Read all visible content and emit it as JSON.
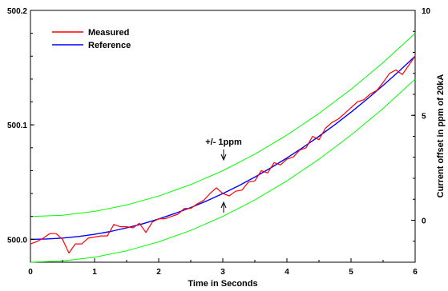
{
  "chart_data": {
    "type": "line",
    "xlabel": "Time in Seconds",
    "ylabel_left": "",
    "ylabel_right": "Current offset in ppm of 20kA",
    "xlim": [
      0,
      6
    ],
    "ylim_left": [
      499.98,
      500.2
    ],
    "ylim_right": [
      -2,
      10
    ],
    "x_ticks": [
      0,
      1,
      2,
      3,
      4,
      5,
      6
    ],
    "x_tick_labels": [
      "0",
      "1",
      "2",
      "3",
      "4",
      "5",
      "6"
    ],
    "y_left_ticks": [
      500.0,
      500.1,
      500.2
    ],
    "y_left_tick_labels": [
      "500.0",
      "500.1",
      "500.2"
    ],
    "y_right_ticks": [
      0,
      5,
      10
    ],
    "y_right_tick_labels": [
      "0",
      "5",
      "10"
    ],
    "grid": false,
    "legend_position": "top-left",
    "annotation": "+/- 1ppm",
    "series": [
      {
        "name": "Measured",
        "color": "#ff0000",
        "x": [
          0,
          0.1,
          0.2,
          0.3,
          0.4,
          0.5,
          0.6,
          0.7,
          0.8,
          0.9,
          1.0,
          1.1,
          1.2,
          1.3,
          1.4,
          1.5,
          1.6,
          1.7,
          1.8,
          1.9,
          2.0,
          2.1,
          2.2,
          2.3,
          2.4,
          2.5,
          2.6,
          2.7,
          2.8,
          2.9,
          3.0,
          3.1,
          3.2,
          3.3,
          3.4,
          3.5,
          3.6,
          3.7,
          3.8,
          3.9,
          4.0,
          4.1,
          4.2,
          4.3,
          4.4,
          4.5,
          4.6,
          4.7,
          4.8,
          4.9,
          5.0,
          5.1,
          5.2,
          5.3,
          5.4,
          5.5,
          5.6,
          5.7,
          5.8,
          5.9,
          6.0
        ],
        "values": [
          499.996,
          499.998,
          500.001,
          500.005,
          500.005,
          500.0,
          499.988,
          499.996,
          499.996,
          500.001,
          500.002,
          500.003,
          500.003,
          500.013,
          500.011,
          500.011,
          500.01,
          500.014,
          500.006,
          500.015,
          500.018,
          500.018,
          500.02,
          500.022,
          500.027,
          500.027,
          500.031,
          500.034,
          500.04,
          500.045,
          500.04,
          500.038,
          500.042,
          500.043,
          500.05,
          500.051,
          500.06,
          500.058,
          500.067,
          500.065,
          500.07,
          500.072,
          500.078,
          500.08,
          500.09,
          500.087,
          500.097,
          500.102,
          500.105,
          500.11,
          500.115,
          500.12,
          500.122,
          500.127,
          500.13,
          500.137,
          500.145,
          500.148,
          500.144,
          500.152,
          500.16
        ]
      },
      {
        "name": "Reference",
        "color": "#0000ff",
        "x": [
          0,
          0.25,
          0.5,
          0.75,
          1.0,
          1.25,
          1.5,
          1.75,
          2.0,
          2.25,
          2.5,
          2.75,
          3.0,
          3.25,
          3.5,
          3.75,
          4.0,
          4.25,
          4.5,
          4.75,
          5.0,
          5.25,
          5.5,
          5.75,
          6.0
        ],
        "values": [
          500.0,
          500.0003,
          500.0011,
          500.0025,
          500.0044,
          500.0069,
          500.01,
          500.0136,
          500.0178,
          500.0225,
          500.0278,
          500.0336,
          500.04,
          500.0469,
          500.0544,
          500.0625,
          500.0711,
          500.0803,
          500.09,
          500.1003,
          500.1111,
          500.1225,
          500.1344,
          500.1469,
          500.16
        ]
      },
      {
        "color": "#00ff00",
        "x": [
          0,
          0.5,
          1.0,
          1.5,
          2.0,
          2.5,
          3.0,
          3.5,
          4.0,
          4.5,
          5.0,
          5.5,
          6.0
        ],
        "values": [
          500.02,
          500.0211,
          500.0244,
          500.03,
          500.0378,
          500.0478,
          500.06,
          500.0744,
          500.0911,
          500.11,
          500.1311,
          500.1544,
          500.18
        ]
      },
      {
        "color": "#00ff00",
        "x": [
          0,
          0.5,
          1.0,
          1.5,
          2.0,
          2.5,
          3.0,
          3.5,
          4.0,
          4.5,
          5.0,
          5.5,
          6.0
        ],
        "values": [
          499.98,
          499.9811,
          499.9844,
          499.99,
          499.9978,
          500.0078,
          500.02,
          500.0344,
          500.0511,
          500.07,
          500.0911,
          500.1144,
          500.14
        ]
      }
    ]
  }
}
